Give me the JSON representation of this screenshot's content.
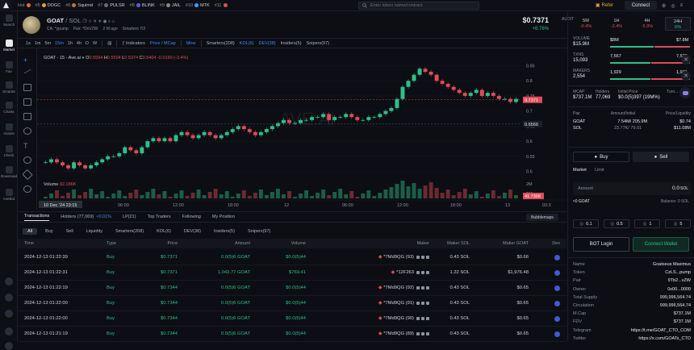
{
  "hot_list": [
    {
      "label": "Hot",
      "name": "",
      "color": "#e86b3a"
    },
    {
      "label": "#5",
      "name": "DOGC",
      "color": "#d9a441"
    },
    {
      "label": "#6",
      "name": "Squirrel",
      "color": "#b07a48"
    },
    {
      "label": "#7",
      "name": "PULSR",
      "color": "#6c6c6c"
    },
    {
      "label": "#8",
      "name": "BLINK",
      "color": "#6a5be6"
    },
    {
      "label": "#9",
      "name": "JAIL",
      "color": "#888"
    },
    {
      "label": "#10",
      "name": "MTK",
      "color": "#3da1ff"
    },
    {
      "label": "#11",
      "name": "",
      "color": "#e04b5a"
    }
  ],
  "search": {
    "placeholder": "Enter token name/contract"
  },
  "refer_label": "Refer",
  "connect_label": "Connect",
  "sidebar": [
    {
      "label": "Search"
    },
    {
      "label": "Market"
    },
    {
      "label": "Fav"
    },
    {
      "label": "Smarter"
    },
    {
      "label": "Charts"
    },
    {
      "label": "Assets"
    },
    {
      "label": "Check"
    },
    {
      "label": "Download"
    },
    {
      "label": "AveBot"
    }
  ],
  "token": {
    "name": "GOAT",
    "quote": "/ SOL",
    "ca": "CA: *ypump",
    "pair": "Pair: *DxVZW",
    "age": "2 M ago",
    "smarters": "Smarters 7/2",
    "price": "$0.7371",
    "change": "+8.76%",
    "audit": "AUDIT"
  },
  "chart_tools": {
    "intervals": [
      "1s",
      "1m",
      "5m",
      "15m",
      "1h",
      "4h",
      "D",
      "W"
    ],
    "selected_interval": "15m",
    "indicators": "Indicators",
    "price_mcap": "Price / MCap",
    "mine": "Mine",
    "smarters": "Smarters(208)",
    "kol": "KOL(6)",
    "dev": "DEV(38)",
    "insiders": "Insiders(5)",
    "snipers": "Snipers(97)"
  },
  "chart_data": {
    "type": "candlestick",
    "title": "GOAT - 15 - Ave.ai",
    "ohlc_legend": {
      "o": "0.5594",
      "h": "0.5594",
      "l": "0.5374",
      "c": "0.5404",
      "chg": "-0.0190 (-3.4%)"
    },
    "price_labels": [
      "0.85",
      "0.8",
      "0.75",
      "0.7",
      "0.65",
      "0.6",
      "0.55",
      "0.5"
    ],
    "current_price_label": "0.7371",
    "crosshair_label": "0.6569",
    "volume_label": "Volume",
    "volume_value": "92.186K",
    "volume_axis": [
      "2M",
      "1M"
    ],
    "volume_badge": "41.736K",
    "time_labels": [
      "10 Dec '24 23:15",
      "06:00",
      "12:00",
      "18:00",
      "12",
      "06:00",
      "12:00",
      "18:00",
      "13",
      "03:3"
    ],
    "close_series": [
      0.53,
      0.54,
      0.53,
      0.52,
      0.51,
      0.53,
      0.52,
      0.51,
      0.52,
      0.53,
      0.54,
      0.55,
      0.55,
      0.56,
      0.58,
      0.57,
      0.56,
      0.58,
      0.6,
      0.61,
      0.6,
      0.61,
      0.6,
      0.62,
      0.63,
      0.62,
      0.61,
      0.62,
      0.63,
      0.62,
      0.61,
      0.62,
      0.63,
      0.64,
      0.65,
      0.64,
      0.63,
      0.62,
      0.63,
      0.64,
      0.65,
      0.66,
      0.67,
      0.66,
      0.66,
      0.67,
      0.67,
      0.68,
      0.68,
      0.69,
      0.67,
      0.68,
      0.68,
      0.69,
      0.68,
      0.67,
      0.67,
      0.68,
      0.68,
      0.69,
      0.7,
      0.71,
      0.74,
      0.78,
      0.8,
      0.82,
      0.84,
      0.83,
      0.82,
      0.8,
      0.79,
      0.78,
      0.77,
      0.76,
      0.75,
      0.76,
      0.77,
      0.75,
      0.76,
      0.75,
      0.74,
      0.74,
      0.73,
      0.74
    ]
  },
  "tabs": [
    "Transactions",
    "Holders (77,069)",
    "LP(21)",
    "Top Traders",
    "Following",
    "My Position"
  ],
  "tab_extra": {
    "holders_pct": "<0.01%"
  },
  "bubblemaps": "Bubblemaps",
  "filters": [
    "All",
    "Buy",
    "Sell",
    "Liquidity",
    "Smarters(208)",
    "KOL(6)",
    "DEV(38)",
    "Insiders(5)",
    "Snipers(97)"
  ],
  "table": {
    "headers": [
      "Time",
      "Type",
      "Price",
      "Amount",
      "Volume",
      "Maker",
      "Maker SOL",
      "Maker GOAT",
      "Dex"
    ],
    "rows": [
      {
        "time": "2024-12-13 01:22:39",
        "type": "Buy",
        "price": "$0.7371",
        "amount": "0.0(5)6 GOAT",
        "volume": "$0.0(5)44",
        "maker": "*7Md9QG (93)",
        "maker_sol": "0.43 SOL",
        "maker_goat": "$0.66"
      },
      {
        "time": "2024-12-13 01:22:31",
        "type": "Buy",
        "price": "$0.7371",
        "amount": "1,043.77 GOAT",
        "volume": "$769.41",
        "maker": "*12F263",
        "maker_sol": "1.22 SOL",
        "maker_goat": "$1,976.48"
      },
      {
        "time": "2024-12-13 01:22:19",
        "type": "Buy",
        "price": "$0.7344",
        "amount": "0.0(5)6 GOAT",
        "volume": "$0.0(5)44",
        "maker": "*7Md9QG (92)",
        "maker_sol": "0.43 SOL",
        "maker_goat": "$0.65"
      },
      {
        "time": "2024-12-13 01:22:00",
        "type": "Buy",
        "price": "$0.7344",
        "amount": "0.0(5)6 GOAT",
        "volume": "$0.0(5)44",
        "maker": "*7Md9QG (91)",
        "maker_sol": "0.43 SOL",
        "maker_goat": "$0.65"
      },
      {
        "time": "2024-12-13 01:22:00",
        "type": "Buy",
        "price": "$0.7344",
        "amount": "0.0(5)6 GOAT",
        "volume": "$0.0(5)44",
        "maker": "*7Md9QG (90)",
        "maker_sol": "0.43 SOL",
        "maker_goat": "$0.65"
      },
      {
        "time": "2024-12-13 01:21:19",
        "type": "Buy",
        "price": "$0.7344",
        "amount": "0.0(5)6 GOAT",
        "volume": "$0.0(5)44",
        "maker": "*7Md9QG (89)",
        "maker_sol": "0.43 SOL",
        "maker_goat": "$0.65"
      }
    ]
  },
  "right": {
    "timeframes": [
      {
        "label": "5M",
        "change": "-0.4%"
      },
      {
        "label": "1H",
        "change": "-2.4%"
      },
      {
        "label": "4H",
        "change": "-5.9%"
      },
      {
        "label": "24H",
        "change": "6%"
      }
    ],
    "volume": {
      "label": "VOLUME",
      "value": "$15.9M",
      "buy": "$8M",
      "sell": "$7.8M"
    },
    "txns": {
      "label": "TXNS",
      "value": "15,093",
      "buy": "7,567",
      "sell": "7,526"
    },
    "makers": {
      "label": "MAKERS",
      "value": "2,554",
      "buy": "1,929",
      "sell": "1,931"
    },
    "mcap": {
      "label": "MCAP",
      "value": "$737.1M"
    },
    "holders": {
      "label": "Holders",
      "value": "77,069"
    },
    "initial_price": {
      "label": "Initial Price",
      "value": "$0.0(5)397 (19M%)"
    },
    "turnover": {
      "label": "Turn..."
    },
    "pair_hdr": [
      "Pair",
      "Amount/Initial",
      "Price/Liquidity"
    ],
    "pair_rows": [
      {
        "sym": "GOAT",
        "amount": "7.54M/ 205.9M",
        "price": "$0.74"
      },
      {
        "sym": "SOL",
        "amount": "23.77K/ 79.01",
        "price": "$11.08M"
      }
    ],
    "buy": "Buy",
    "sell": "Sell",
    "market": "Market",
    "limit": "Limit",
    "amount_label": "Amount",
    "amount_value": "0.0",
    "amount_unit": "SOL",
    "goat_label": "≈0 GOAT",
    "balance": "Balance: 0 SOL",
    "quick": [
      "0.1",
      "0.5",
      "1",
      "5"
    ],
    "bot_login": "BOT Login",
    "connect_wallet": "Connect Wallet",
    "info": [
      {
        "k": "Name",
        "v": "Goatseus Maximus"
      },
      {
        "k": "Token",
        "v": "CzLS...pump"
      },
      {
        "k": "Pair",
        "v": "9Tb2...vZW"
      },
      {
        "k": "Owner",
        "v": "0x00...0000"
      },
      {
        "k": "Total Supply",
        "v": "999,996,564.74"
      },
      {
        "k": "Circulation",
        "v": "999,996,564.74"
      },
      {
        "k": "M.Cap",
        "v": "$737.1M"
      },
      {
        "k": "FDV",
        "v": "$737.1M"
      },
      {
        "k": "Telegram",
        "v": "https://t.me/GOAT_CTO_COM"
      },
      {
        "k": "Twitter",
        "v": "https://x.com/GOATs_CTO"
      }
    ]
  }
}
